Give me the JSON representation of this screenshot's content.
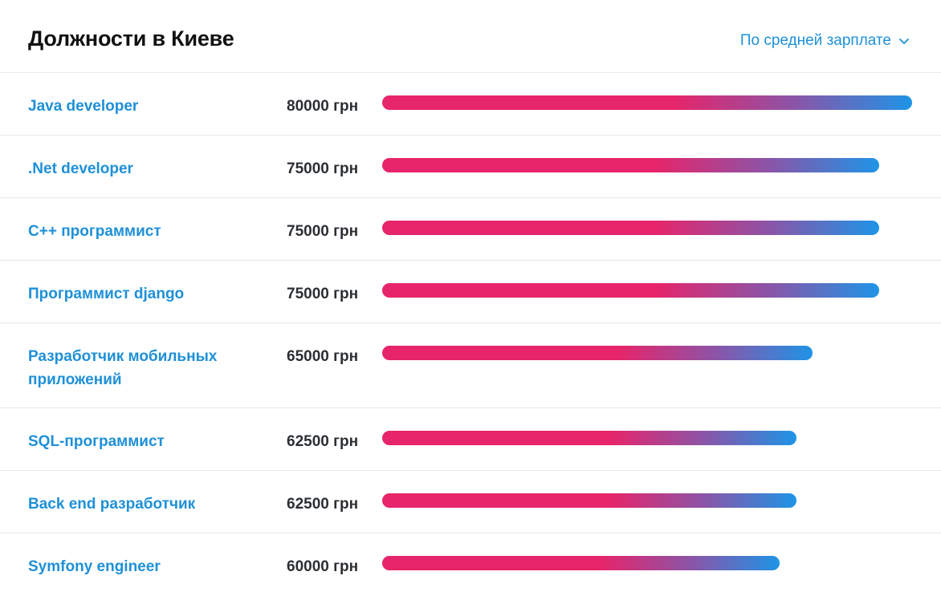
{
  "header": {
    "title": "Должности в Киеве",
    "sort_label": "По средней зарплате",
    "sort_icon": "chevron-down-icon"
  },
  "colors": {
    "link": "#1e90d8",
    "bar_start": "#e6256a",
    "bar_end": "#1e94e6"
  },
  "max_salary": 80000,
  "jobs": [
    {
      "title": "Java developer",
      "salary": "80000 грн",
      "value": 80000
    },
    {
      "title": ".Net developer",
      "salary": "75000 грн",
      "value": 75000
    },
    {
      "title": "C++ программист",
      "salary": "75000 грн",
      "value": 75000
    },
    {
      "title": "Программист django",
      "salary": "75000 грн",
      "value": 75000
    },
    {
      "title": "Разработчик мобильных приложений",
      "salary": "65000 грн",
      "value": 65000
    },
    {
      "title": "SQL-программист",
      "salary": "62500 грн",
      "value": 62500
    },
    {
      "title": "Back end разработчик",
      "salary": "62500 грн",
      "value": 62500
    },
    {
      "title": "Symfony engineer",
      "salary": "60000 грн",
      "value": 60000
    }
  ]
}
